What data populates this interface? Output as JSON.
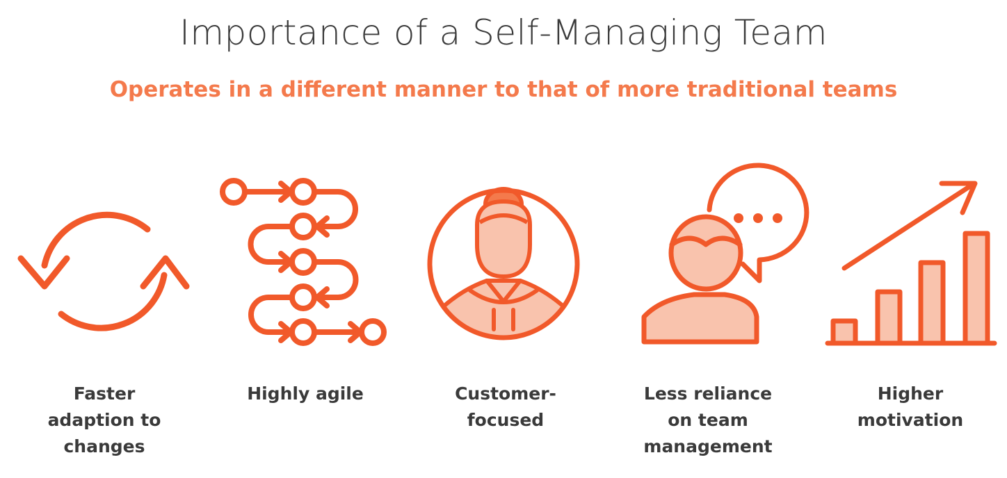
{
  "slide": {
    "title": "Importance of a Self-Managing Team",
    "subtitle": "Operates in a different manner to that of more traditional teams"
  },
  "features": [
    {
      "icon": "refresh-cycle-icon",
      "lines": [
        "Faster",
        "adaption to",
        "changes"
      ]
    },
    {
      "icon": "agile-flow-icon",
      "lines": [
        "Highly agile"
      ]
    },
    {
      "icon": "customer-portrait-icon",
      "lines": [
        "Customer-",
        "focused"
      ]
    },
    {
      "icon": "person-speech-bubble-icon",
      "lines": [
        "Less reliance",
        "on team",
        "management"
      ]
    },
    {
      "icon": "growth-chart-icon",
      "lines": [
        "Higher",
        "motivation"
      ]
    }
  ],
  "colors": {
    "accent": "#f1592a",
    "accent_fill": "#f9c3ad",
    "subtitle": "#f47a4c",
    "text": "#3a3a3a"
  }
}
